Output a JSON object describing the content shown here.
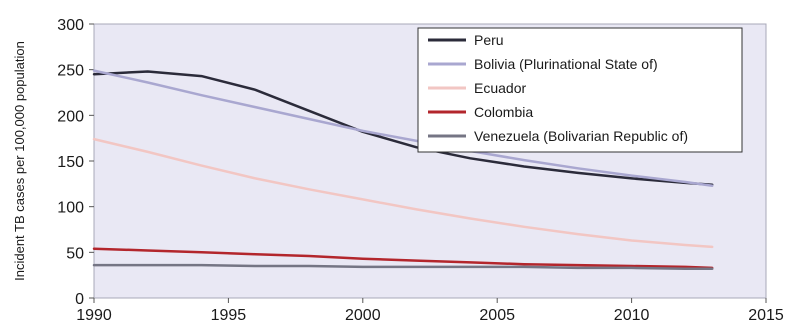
{
  "chart_data": {
    "type": "line",
    "title": "",
    "xlabel": "",
    "ylabel": "Incident TB cases per 100,000 population",
    "xlim": [
      1990,
      2015
    ],
    "ylim": [
      0,
      300
    ],
    "x_ticks": [
      1990,
      1995,
      2000,
      2005,
      2010,
      2015
    ],
    "y_ticks": [
      0,
      50,
      100,
      150,
      200,
      250,
      300
    ],
    "grid": false,
    "legend_position": "top-right",
    "plot_background": "#e9e8f4",
    "series": [
      {
        "name": "Peru",
        "color": "#2b2b3a",
        "x": [
          1990,
          1992,
          1994,
          1996,
          1998,
          2000,
          2002,
          2004,
          2006,
          2008,
          2010,
          2012,
          2013
        ],
        "values": [
          245,
          248,
          243,
          228,
          205,
          182,
          165,
          153,
          144,
          137,
          131,
          126,
          124
        ]
      },
      {
        "name": "Bolivia (Plurinational State of)",
        "color": "#a9a7d0",
        "x": [
          1990,
          1992,
          1994,
          1996,
          1998,
          2000,
          2002,
          2004,
          2006,
          2008,
          2010,
          2012,
          2013
        ],
        "values": [
          249,
          236,
          222,
          209,
          196,
          183,
          172,
          161,
          151,
          142,
          134,
          127,
          123
        ]
      },
      {
        "name": "Ecuador",
        "color": "#f2c6c3",
        "x": [
          1990,
          1992,
          1994,
          1996,
          1998,
          2000,
          2002,
          2004,
          2006,
          2008,
          2010,
          2012,
          2013
        ],
        "values": [
          174,
          160,
          145,
          131,
          119,
          108,
          97,
          87,
          78,
          70,
          63,
          58,
          56
        ]
      },
      {
        "name": "Colombia",
        "color": "#b3262c",
        "x": [
          1990,
          1992,
          1994,
          1996,
          1998,
          2000,
          2002,
          2004,
          2006,
          2008,
          2010,
          2012,
          2013
        ],
        "values": [
          54,
          52,
          50,
          48,
          46,
          43,
          41,
          39,
          37,
          36,
          35,
          34,
          33
        ]
      },
      {
        "name": "Venezuela (Bolivarian Republic of)",
        "color": "#757584",
        "x": [
          1990,
          1992,
          1994,
          1996,
          1998,
          2000,
          2002,
          2004,
          2006,
          2008,
          2010,
          2012,
          2013
        ],
        "values": [
          36,
          36,
          36,
          35,
          35,
          34,
          34,
          34,
          34,
          33,
          33,
          32,
          32
        ]
      }
    ]
  }
}
